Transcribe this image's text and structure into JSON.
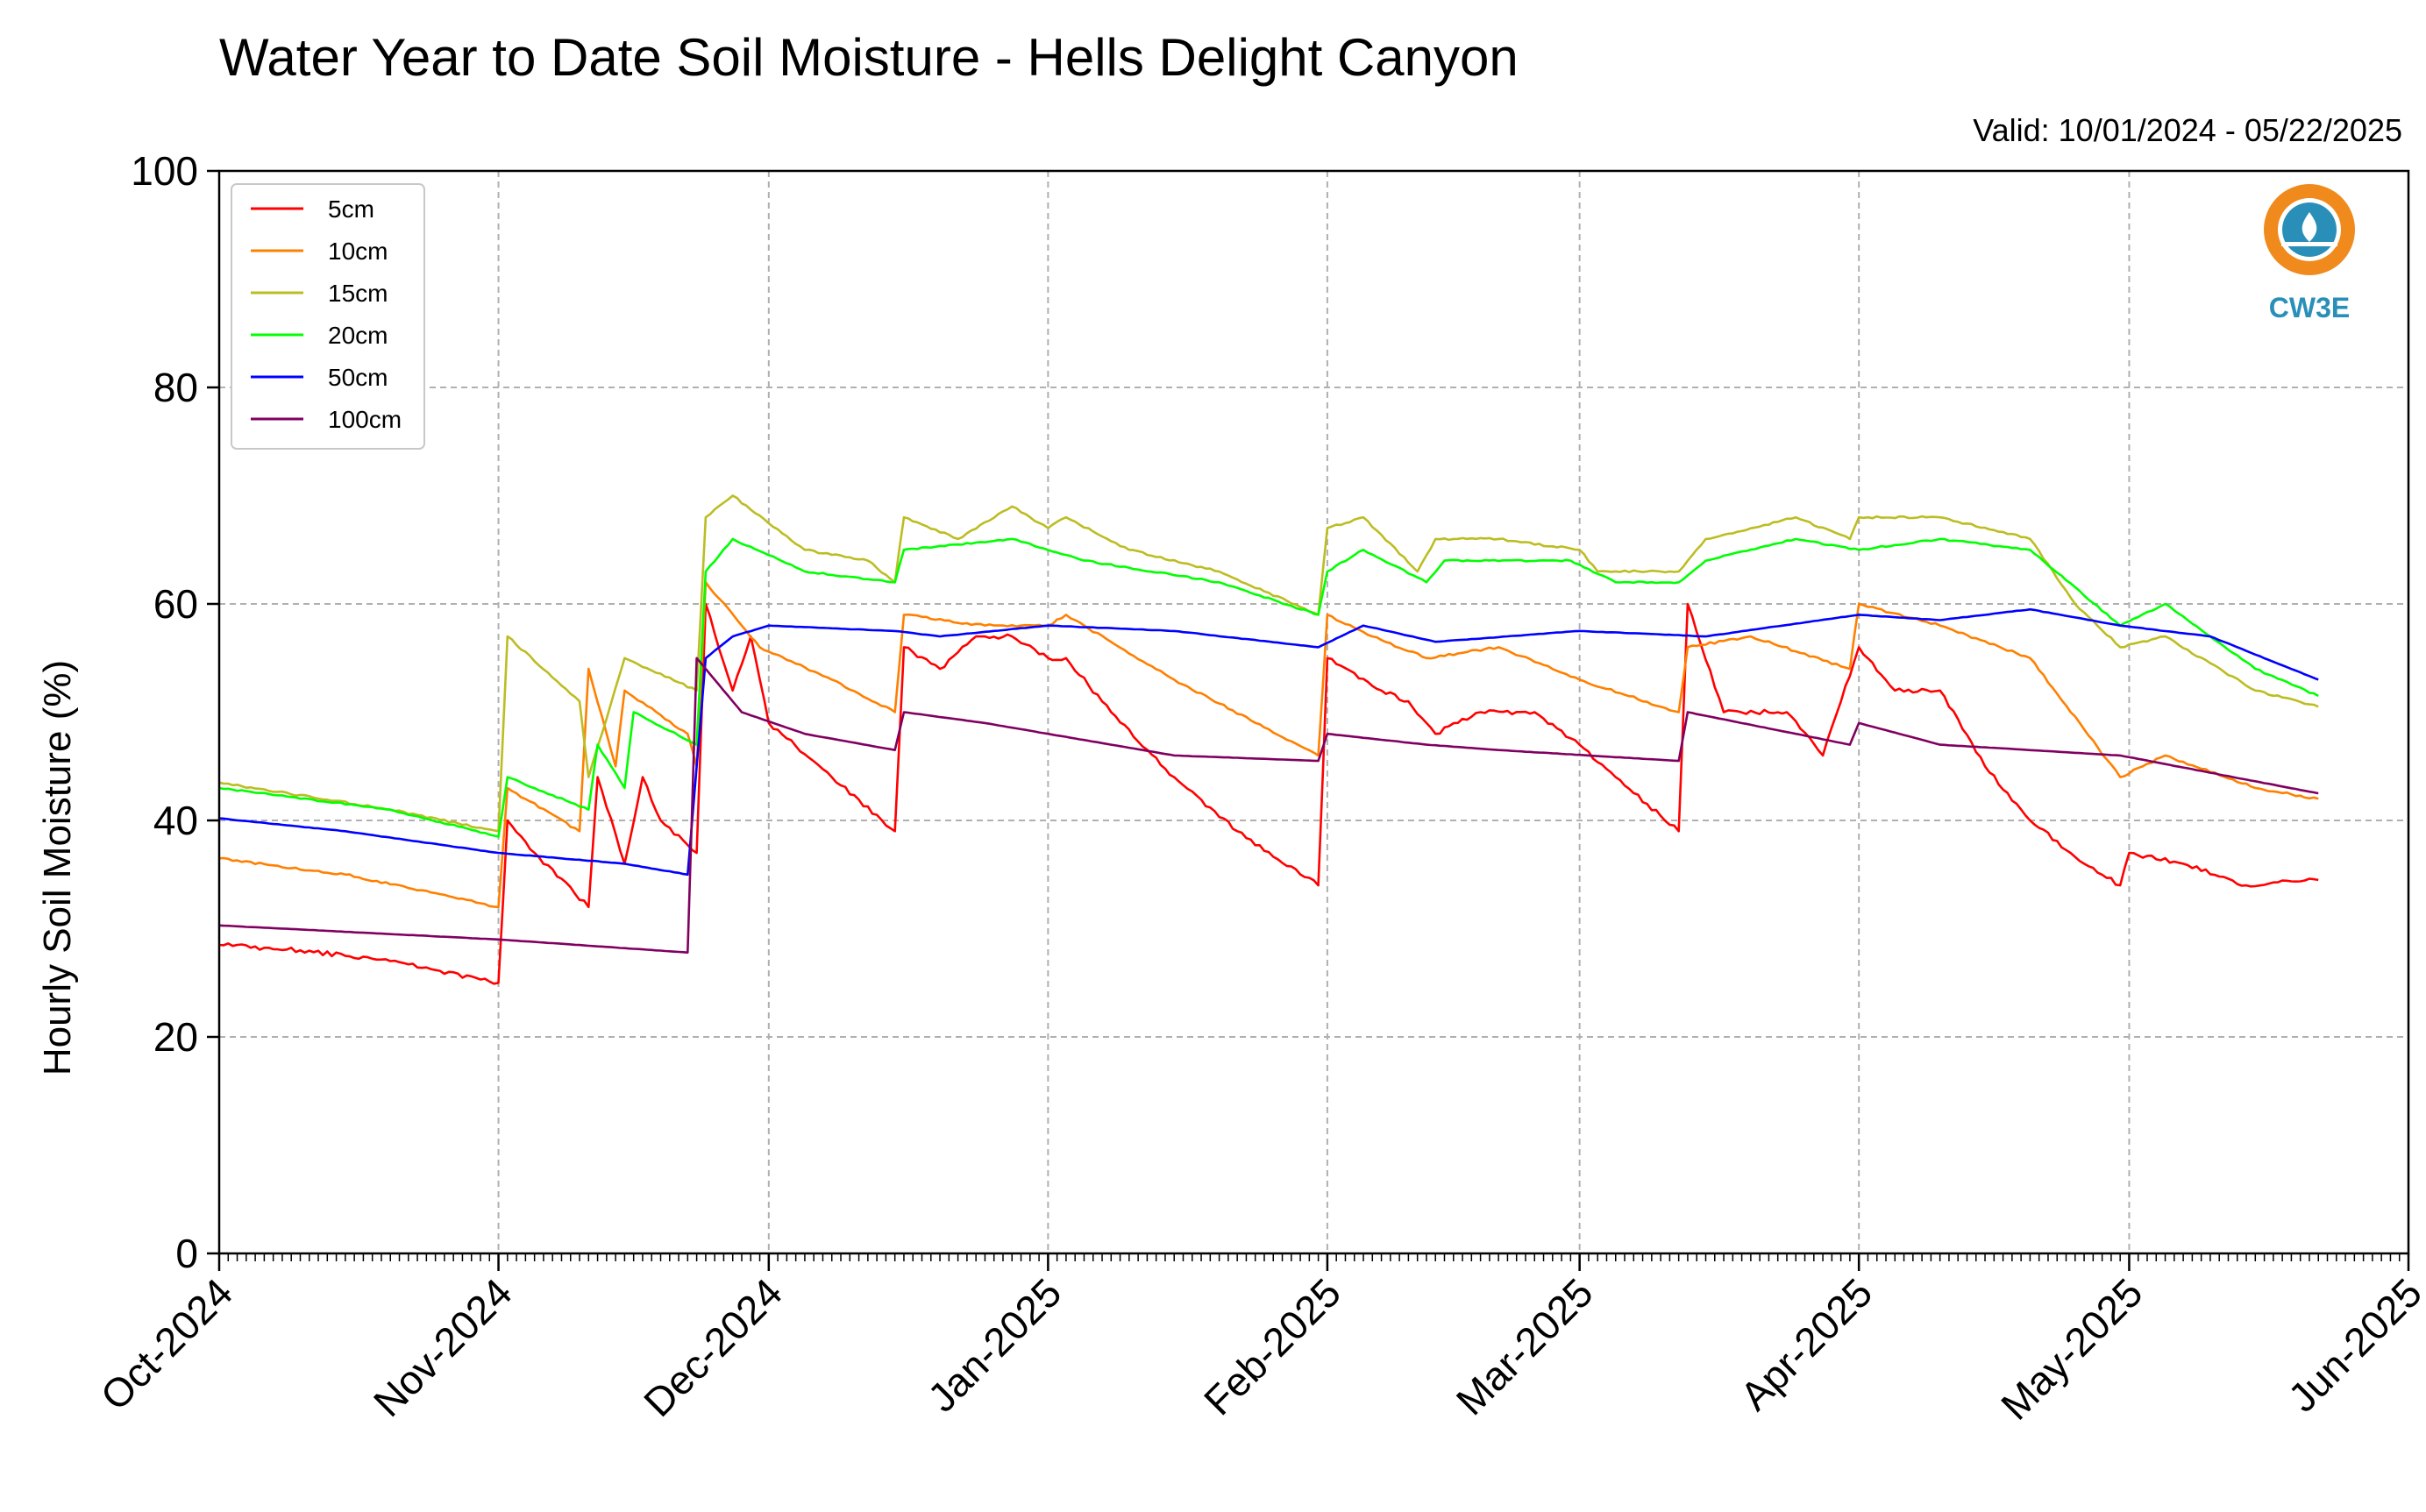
{
  "chart_data": {
    "type": "line",
    "title": "Water Year to Date Soil Moisture - Hells Delight Canyon",
    "subtitle": "Valid: 10/01/2024 - 05/22/2025",
    "xlabel": "",
    "ylabel": "Hourly Soil Moisture (%)",
    "xlim": [
      "2024-10-01",
      "2025-06-01"
    ],
    "ylim": [
      0,
      100
    ],
    "yticks": [
      0,
      20,
      40,
      60,
      80,
      100
    ],
    "xticks": [
      {
        "date": "2024-10-01",
        "label": "Oct-2024"
      },
      {
        "date": "2024-11-01",
        "label": "Nov-2024"
      },
      {
        "date": "2024-12-01",
        "label": "Dec-2024"
      },
      {
        "date": "2025-01-01",
        "label": "Jan-2025"
      },
      {
        "date": "2025-02-01",
        "label": "Feb-2025"
      },
      {
        "date": "2025-03-01",
        "label": "Mar-2025"
      },
      {
        "date": "2025-04-01",
        "label": "Apr-2025"
      },
      {
        "date": "2025-05-01",
        "label": "May-2025"
      },
      {
        "date": "2025-06-01",
        "label": "Jun-2025"
      }
    ],
    "grid": true,
    "legend_position": "top-left",
    "logo": {
      "text": "CW3E",
      "color_outer": "#f08a1c",
      "color_inner": "#2a8fb8"
    },
    "series": [
      {
        "name": "5cm",
        "color": "#ff0000",
        "points": [
          [
            "2024-10-01",
            28.5
          ],
          [
            "2024-10-10",
            28
          ],
          [
            "2024-10-20",
            27
          ],
          [
            "2024-11-01",
            25
          ],
          [
            "2024-11-02",
            40
          ],
          [
            "2024-11-05",
            37
          ],
          [
            "2024-11-11",
            32
          ],
          [
            "2024-11-12",
            44
          ],
          [
            "2024-11-15",
            36
          ],
          [
            "2024-11-17",
            44
          ],
          [
            "2024-11-19",
            40
          ],
          [
            "2024-11-23",
            37
          ],
          [
            "2024-11-24",
            60
          ],
          [
            "2024-11-27",
            52
          ],
          [
            "2024-11-29",
            57
          ],
          [
            "2024-12-01",
            49
          ],
          [
            "2024-12-08",
            44
          ],
          [
            "2024-12-15",
            39
          ],
          [
            "2024-12-16",
            56
          ],
          [
            "2024-12-20",
            54
          ],
          [
            "2024-12-24",
            57
          ],
          [
            "2024-12-28",
            57
          ],
          [
            "2025-01-01",
            55
          ],
          [
            "2025-01-03",
            55
          ],
          [
            "2025-01-08",
            50
          ],
          [
            "2025-01-15",
            44
          ],
          [
            "2025-01-22",
            39
          ],
          [
            "2025-01-31",
            34
          ],
          [
            "2025-02-01",
            55
          ],
          [
            "2025-02-07",
            52
          ],
          [
            "2025-02-10",
            51
          ],
          [
            "2025-02-13",
            48
          ],
          [
            "2025-02-18",
            50
          ],
          [
            "2025-02-24",
            50
          ],
          [
            "2025-03-01",
            47
          ],
          [
            "2025-03-05",
            44
          ],
          [
            "2025-03-12",
            39
          ],
          [
            "2025-03-13",
            60
          ],
          [
            "2025-03-17",
            50
          ],
          [
            "2025-03-24",
            50
          ],
          [
            "2025-03-28",
            46
          ],
          [
            "2025-04-01",
            56
          ],
          [
            "2025-04-05",
            52
          ],
          [
            "2025-04-10",
            52
          ],
          [
            "2025-04-15",
            45
          ],
          [
            "2025-04-20",
            40
          ],
          [
            "2025-04-26",
            36
          ],
          [
            "2025-04-30",
            34
          ],
          [
            "2025-05-01",
            37
          ],
          [
            "2025-05-07",
            36
          ],
          [
            "2025-05-14",
            34
          ],
          [
            "2025-05-22",
            34.5
          ]
        ]
      },
      {
        "name": "10cm",
        "color": "#ff8000",
        "points": [
          [
            "2024-10-01",
            36.5
          ],
          [
            "2024-10-15",
            35
          ],
          [
            "2024-11-01",
            32
          ],
          [
            "2024-11-02",
            43
          ],
          [
            "2024-11-10",
            39
          ],
          [
            "2024-11-11",
            54
          ],
          [
            "2024-11-14",
            45
          ],
          [
            "2024-11-15",
            52
          ],
          [
            "2024-11-22",
            48
          ],
          [
            "2024-11-23",
            45
          ],
          [
            "2024-11-24",
            62
          ],
          [
            "2024-11-30",
            56
          ],
          [
            "2024-12-08",
            53
          ],
          [
            "2024-12-15",
            50
          ],
          [
            "2024-12-16",
            59
          ],
          [
            "2024-12-25",
            58
          ],
          [
            "2025-01-01",
            58
          ],
          [
            "2025-01-03",
            59
          ],
          [
            "2025-01-15",
            53
          ],
          [
            "2025-01-31",
            46
          ],
          [
            "2025-02-01",
            59
          ],
          [
            "2025-02-06",
            57
          ],
          [
            "2025-02-12",
            55
          ],
          [
            "2025-02-20",
            56
          ],
          [
            "2025-03-01",
            53
          ],
          [
            "2025-03-12",
            50
          ],
          [
            "2025-03-13",
            56
          ],
          [
            "2025-03-20",
            57
          ],
          [
            "2025-03-31",
            54
          ],
          [
            "2025-04-01",
            60
          ],
          [
            "2025-04-10",
            58
          ],
          [
            "2025-04-20",
            55
          ],
          [
            "2025-04-30",
            44
          ],
          [
            "2025-05-05",
            46
          ],
          [
            "2025-05-15",
            43
          ],
          [
            "2025-05-22",
            42
          ]
        ]
      },
      {
        "name": "15cm",
        "color": "#bcbd22",
        "points": [
          [
            "2024-10-01",
            43.5
          ],
          [
            "2024-10-20",
            41
          ],
          [
            "2024-11-01",
            39
          ],
          [
            "2024-11-02",
            57
          ],
          [
            "2024-11-10",
            51
          ],
          [
            "2024-11-11",
            44
          ],
          [
            "2024-11-15",
            55
          ],
          [
            "2024-11-23",
            52
          ],
          [
            "2024-11-24",
            68
          ],
          [
            "2024-11-27",
            70
          ],
          [
            "2024-12-05",
            65
          ],
          [
            "2024-12-12",
            64
          ],
          [
            "2024-12-15",
            62
          ],
          [
            "2024-12-16",
            68
          ],
          [
            "2024-12-22",
            66
          ],
          [
            "2024-12-28",
            69
          ],
          [
            "2025-01-01",
            67
          ],
          [
            "2025-01-03",
            68
          ],
          [
            "2025-01-10",
            65
          ],
          [
            "2025-01-20",
            63
          ],
          [
            "2025-01-31",
            59
          ],
          [
            "2025-02-01",
            67
          ],
          [
            "2025-02-05",
            68
          ],
          [
            "2025-02-11",
            63
          ],
          [
            "2025-02-13",
            66
          ],
          [
            "2025-02-20",
            66
          ],
          [
            "2025-03-01",
            65
          ],
          [
            "2025-03-03",
            63
          ],
          [
            "2025-03-10",
            63
          ],
          [
            "2025-03-12",
            63
          ],
          [
            "2025-03-15",
            66
          ],
          [
            "2025-03-25",
            68
          ],
          [
            "2025-03-31",
            66
          ],
          [
            "2025-04-01",
            68
          ],
          [
            "2025-04-10",
            68
          ],
          [
            "2025-04-20",
            66
          ],
          [
            "2025-04-25",
            60
          ],
          [
            "2025-04-30",
            56
          ],
          [
            "2025-05-05",
            57
          ],
          [
            "2025-05-15",
            52
          ],
          [
            "2025-05-22",
            50.5
          ]
        ]
      },
      {
        "name": "20cm",
        "color": "#00ff00",
        "points": [
          [
            "2024-10-01",
            43
          ],
          [
            "2024-10-20",
            41
          ],
          [
            "2024-11-01",
            38.5
          ],
          [
            "2024-11-02",
            44
          ],
          [
            "2024-11-11",
            41
          ],
          [
            "2024-11-12",
            47
          ],
          [
            "2024-11-15",
            43
          ],
          [
            "2024-11-16",
            50
          ],
          [
            "2024-11-23",
            47
          ],
          [
            "2024-11-24",
            63
          ],
          [
            "2024-11-27",
            66
          ],
          [
            "2024-12-05",
            63
          ],
          [
            "2024-12-15",
            62
          ],
          [
            "2024-12-16",
            65
          ],
          [
            "2024-12-28",
            66
          ],
          [
            "2025-01-05",
            64
          ],
          [
            "2025-01-20",
            62
          ],
          [
            "2025-01-31",
            59
          ],
          [
            "2025-02-01",
            63
          ],
          [
            "2025-02-05",
            65
          ],
          [
            "2025-02-12",
            62
          ],
          [
            "2025-02-14",
            64
          ],
          [
            "2025-02-28",
            64
          ],
          [
            "2025-03-05",
            62
          ],
          [
            "2025-03-12",
            62
          ],
          [
            "2025-03-15",
            64
          ],
          [
            "2025-03-25",
            66
          ],
          [
            "2025-04-01",
            65
          ],
          [
            "2025-04-10",
            66
          ],
          [
            "2025-04-20",
            65
          ],
          [
            "2025-04-30",
            58
          ],
          [
            "2025-05-05",
            60
          ],
          [
            "2025-05-15",
            54
          ],
          [
            "2025-05-22",
            51.5
          ]
        ]
      },
      {
        "name": "50cm",
        "color": "#0000ff",
        "points": [
          [
            "2024-10-01",
            40.2
          ],
          [
            "2024-10-15",
            39
          ],
          [
            "2024-11-01",
            37
          ],
          [
            "2024-11-15",
            36
          ],
          [
            "2024-11-22",
            35
          ],
          [
            "2024-11-24",
            55
          ],
          [
            "2024-11-27",
            57
          ],
          [
            "2024-12-01",
            58
          ],
          [
            "2024-12-15",
            57.5
          ],
          [
            "2024-12-20",
            57
          ],
          [
            "2025-01-01",
            58
          ],
          [
            "2025-01-15",
            57.5
          ],
          [
            "2025-01-31",
            56
          ],
          [
            "2025-02-05",
            58
          ],
          [
            "2025-02-13",
            56.5
          ],
          [
            "2025-03-01",
            57.5
          ],
          [
            "2025-03-15",
            57
          ],
          [
            "2025-04-01",
            59
          ],
          [
            "2025-04-10",
            58.5
          ],
          [
            "2025-04-20",
            59.5
          ],
          [
            "2025-04-30",
            58
          ],
          [
            "2025-05-10",
            57
          ],
          [
            "2025-05-22",
            53
          ]
        ]
      },
      {
        "name": "100cm",
        "color": "#800060",
        "points": [
          [
            "2024-10-01",
            30.3
          ],
          [
            "2024-11-01",
            29
          ],
          [
            "2024-11-22",
            27.8
          ],
          [
            "2024-11-23",
            55
          ],
          [
            "2024-11-28",
            50
          ],
          [
            "2024-12-05",
            48
          ],
          [
            "2024-12-15",
            46.5
          ],
          [
            "2024-12-16",
            50
          ],
          [
            "2024-12-25",
            49
          ],
          [
            "2025-01-01",
            48
          ],
          [
            "2025-01-15",
            46
          ],
          [
            "2025-01-31",
            45.5
          ],
          [
            "2025-02-01",
            48
          ],
          [
            "2025-02-12",
            47
          ],
          [
            "2025-02-20",
            46.5
          ],
          [
            "2025-03-12",
            45.5
          ],
          [
            "2025-03-13",
            50
          ],
          [
            "2025-03-31",
            47
          ],
          [
            "2025-04-01",
            49
          ],
          [
            "2025-04-10",
            47
          ],
          [
            "2025-04-30",
            46
          ],
          [
            "2025-05-22",
            42.5
          ]
        ]
      }
    ]
  }
}
